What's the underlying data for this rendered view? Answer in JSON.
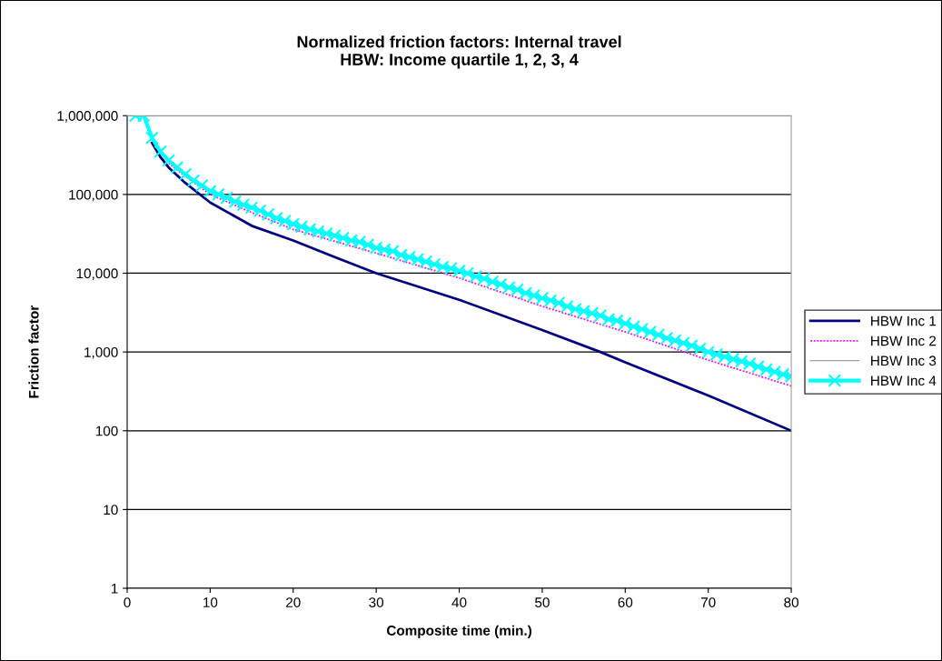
{
  "chart_data": {
    "type": "line",
    "title": "Normalized friction factors: Internal travel\nHBW: Income quartile 1, 2, 3, 4",
    "xlabel": "Composite time (min.)",
    "ylabel": "Friction factor",
    "log": "y",
    "grid": "y",
    "legend": "right",
    "xlim": [
      0,
      80
    ],
    "xticks": [
      0,
      10,
      20,
      30,
      40,
      50,
      60,
      70,
      80
    ],
    "ylim": [
      1,
      1000000
    ],
    "yticks": [
      {
        "value": 1,
        "label": "1"
      },
      {
        "value": 10,
        "label": "10"
      },
      {
        "value": 100,
        "label": "100"
      },
      {
        "value": 1000,
        "label": "1,000"
      },
      {
        "value": 10000,
        "label": "10,000"
      },
      {
        "value": 100000,
        "label": "100,000"
      },
      {
        "value": 1000000,
        "label": "1,000,000"
      }
    ],
    "series": [
      {
        "name": "HBW Inc 1",
        "color": "#000080",
        "line_style": "solid",
        "marker": "none",
        "x": [
          3,
          4,
          5,
          7,
          10,
          15,
          20,
          25,
          30,
          40,
          50,
          57,
          60,
          70,
          80
        ],
        "values": [
          450000,
          300000,
          220000,
          140000,
          79000,
          40000,
          26000,
          16000,
          10000,
          4600,
          1900,
          1000,
          740,
          280,
          100
        ]
      },
      {
        "name": "HBW Inc 2",
        "color": "#ff00ff",
        "line_style": "dotted",
        "marker": "none",
        "x": [
          5,
          7,
          10,
          15,
          20,
          30,
          40,
          50,
          60,
          70,
          80
        ],
        "values": [
          250000,
          170000,
          100000,
          59000,
          36000,
          18000,
          8700,
          3800,
          1800,
          790,
          370
        ]
      },
      {
        "name": "HBW Inc 3",
        "color": "#a0a0a0",
        "line_style": "solid",
        "marker": "none"
      },
      {
        "name": "HBW Inc 4",
        "color": "#00ffff",
        "line_style": "solid",
        "marker": "cross",
        "x": [
          1,
          2,
          3,
          4,
          5,
          6,
          7,
          8,
          9,
          10,
          11,
          12,
          13,
          14,
          15,
          16,
          17,
          18,
          19,
          20,
          21,
          22,
          23,
          24,
          25,
          26,
          27,
          28,
          29,
          30,
          31,
          32,
          33,
          34,
          35,
          36,
          37,
          38,
          39,
          40,
          41,
          42,
          43,
          44,
          45,
          46,
          47,
          48,
          49,
          50,
          51,
          52,
          53,
          54,
          55,
          56,
          57,
          58,
          59,
          60,
          61,
          62,
          63,
          64,
          65,
          66,
          67,
          68,
          69,
          70,
          71,
          72,
          73,
          74,
          75,
          76,
          77,
          78,
          79,
          80
        ],
        "values": [
          1000000,
          1000000,
          520000,
          350000,
          270000,
          220000,
          180000,
          150000,
          130000,
          110000,
          100000,
          91000,
          81000,
          74000,
          68000,
          62000,
          56000,
          50000,
          46000,
          42000,
          39000,
          36000,
          34000,
          32000,
          30000,
          28000,
          26000,
          25000,
          23000,
          21000,
          20000,
          19000,
          17000,
          16000,
          15000,
          14000,
          13000,
          12000,
          11500,
          10700,
          10000,
          9100,
          8500,
          7800,
          7200,
          6600,
          6200,
          5600,
          5200,
          4800,
          4500,
          4200,
          3800,
          3500,
          3300,
          3100,
          2900,
          2600,
          2500,
          2300,
          2100,
          1950,
          1800,
          1650,
          1500,
          1400,
          1300,
          1200,
          1100,
          1000,
          930,
          870,
          810,
          760,
          710,
          650,
          600,
          560,
          520,
          490
        ]
      }
    ]
  }
}
